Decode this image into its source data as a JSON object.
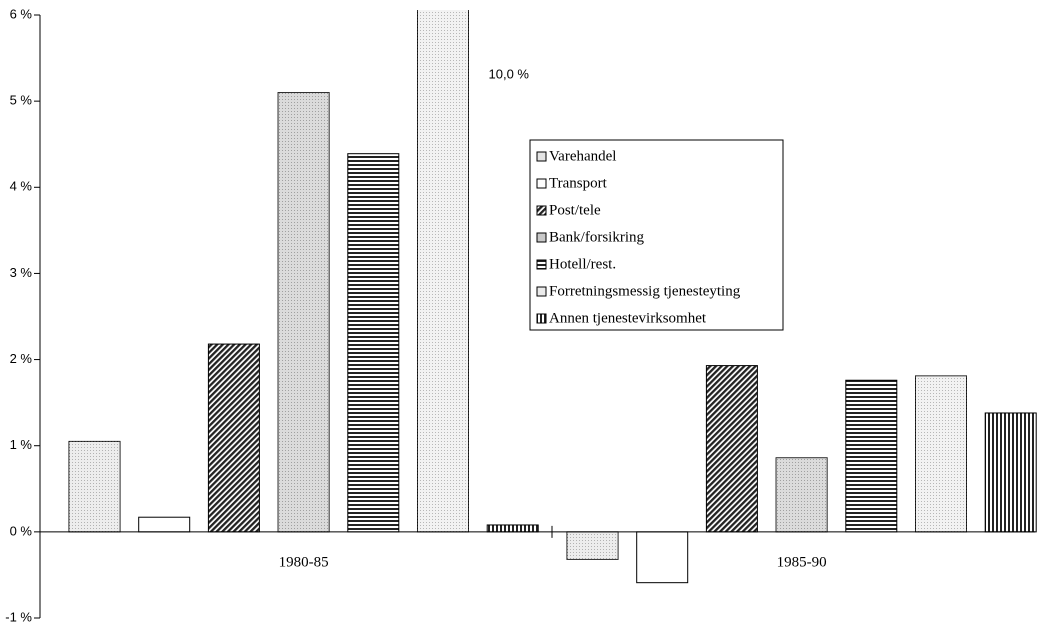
{
  "chart_data": {
    "type": "bar",
    "categories": [
      "1980-85",
      "1985-90"
    ],
    "series": [
      {
        "name": "Varehandel",
        "color": "#e4e4e4",
        "hatch": "dots",
        "values": [
          1.05,
          -0.32
        ]
      },
      {
        "name": "Transport",
        "color": "#ffffff",
        "hatch": "none",
        "values": [
          0.17,
          -0.59
        ]
      },
      {
        "name": "Post/tele",
        "color": "#333333",
        "hatch": "diagonal",
        "values": [
          2.18,
          1.93
        ]
      },
      {
        "name": "Bank/forsikring",
        "color": "#c8c8c8",
        "hatch": "dots",
        "values": [
          5.1,
          0.86
        ]
      },
      {
        "name": "Hotell/rest.",
        "color": "#333333",
        "hatch": "horizontal",
        "values": [
          4.39,
          1.76
        ]
      },
      {
        "name": "Forretningsmessig tjenesteyting",
        "color": "#ebebeb",
        "hatch": "dots",
        "values": [
          10.0,
          1.81
        ],
        "value_labels": [
          "10,0 %",
          null
        ]
      },
      {
        "name": "Annen tjenestevirksomhet",
        "color": "#222222",
        "hatch": "vertical",
        "values": [
          0.08,
          1.38
        ]
      }
    ],
    "ylim": [
      -1,
      6
    ],
    "yticks": [
      {
        "value": -1,
        "label": "-1 %"
      },
      {
        "value": 0,
        "label": "0 %"
      },
      {
        "value": 1,
        "label": "1 %"
      },
      {
        "value": 2,
        "label": "2 %"
      },
      {
        "value": 3,
        "label": "3 %"
      },
      {
        "value": 4,
        "label": "4 %"
      },
      {
        "value": 5,
        "label": "5 %"
      },
      {
        "value": 6,
        "label": "6 %"
      }
    ],
    "grid": false
  }
}
